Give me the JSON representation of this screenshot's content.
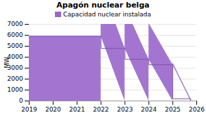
{
  "chart_data": {
    "type": "area",
    "title": "Apagón nuclear belga",
    "ylabel": "MW",
    "x": [
      2019.0,
      2022.0,
      2022.0,
      2023.0,
      2023.0,
      2024.0,
      2024.0,
      2025.0,
      2025.0,
      2025.75,
      2025.75,
      2026.0
    ],
    "series": [
      {
        "name": "Capacidad nuclear instalada",
        "color": "#9966cc",
        "values": [
          5900,
          5900,
          4800,
          4800,
          3800,
          3800,
          3300,
          3300,
          200,
          200,
          0,
          0
        ]
      }
    ],
    "xlim": [
      2019,
      2026
    ],
    "xticks": [
      2019,
      2020,
      2021,
      2022,
      2023,
      2024,
      2025,
      2026
    ],
    "ylim": [
      0,
      7000
    ],
    "yticks": [
      0,
      1000,
      2000,
      3000,
      4000,
      5000,
      6000,
      7000
    ],
    "grid": true,
    "legend": "top"
  }
}
